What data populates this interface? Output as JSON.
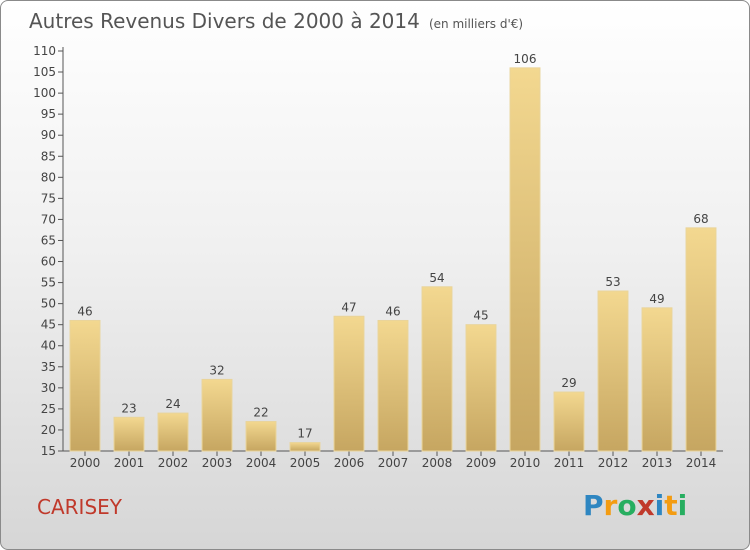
{
  "header": {
    "title": "Autres Revenus Divers de 2000 à 2014",
    "subtitle": "(en milliers d'€)"
  },
  "commune": "CARISEY",
  "logo": {
    "text": "Proxiti",
    "letters": [
      "P",
      "r",
      "o",
      "x",
      "i",
      "t",
      "i"
    ],
    "colors": [
      "#2e86c1",
      "#f39c12",
      "#27ae60",
      "#c0392b",
      "#2e86c1",
      "#f39c12",
      "#27ae60"
    ]
  },
  "colors": {
    "bar_light": "#f3d890",
    "bar_dark": "#c6a661",
    "axis": "#555555"
  },
  "chart_data": {
    "type": "bar",
    "title": "Autres Revenus Divers de 2000 à 2014",
    "subtitle": "(en milliers d'€)",
    "categories": [
      "2000",
      "2001",
      "2002",
      "2003",
      "2004",
      "2005",
      "2006",
      "2007",
      "2008",
      "2009",
      "2010",
      "2011",
      "2012",
      "2013",
      "2014"
    ],
    "values": [
      46,
      23,
      24,
      32,
      22,
      17,
      47,
      46,
      54,
      45,
      106,
      29,
      53,
      49,
      68
    ],
    "ylim": [
      15,
      110
    ],
    "yticks": [
      15,
      20,
      25,
      30,
      35,
      40,
      45,
      50,
      55,
      60,
      65,
      70,
      75,
      80,
      85,
      90,
      95,
      100,
      105,
      110
    ],
    "grid": false,
    "legend": "none",
    "data_labels": true
  }
}
